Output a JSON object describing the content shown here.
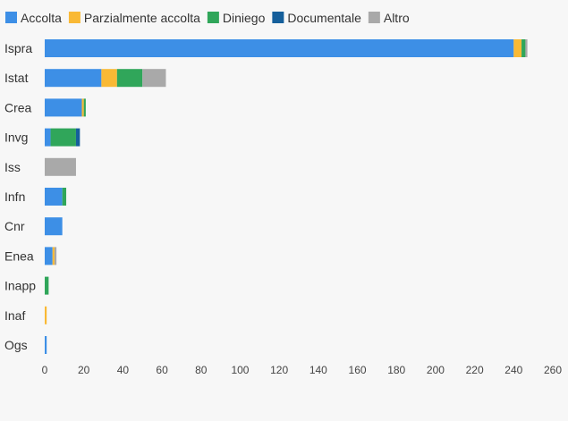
{
  "chart_data": {
    "type": "bar",
    "orientation": "horizontal",
    "stacked": true,
    "title": "",
    "xlabel": "",
    "ylabel": "",
    "xlim": [
      0,
      260
    ],
    "x_ticks": [
      0,
      20,
      40,
      60,
      80,
      100,
      120,
      140,
      160,
      180,
      200,
      220,
      240,
      260
    ],
    "grid": false,
    "legend_position": "top-left",
    "categories": [
      "Ispra",
      "Istat",
      "Crea",
      "Invg",
      "Iss",
      "Infn",
      "Cnr",
      "Enea",
      "Inapp",
      "Inaf",
      "Ogs"
    ],
    "series": [
      {
        "name": "Accolta",
        "color": "#3d8fe6",
        "values": [
          240,
          29,
          19,
          3,
          0,
          9,
          9,
          4,
          0,
          0,
          1
        ]
      },
      {
        "name": "Parzialmente accolta",
        "color": "#f9b935",
        "values": [
          4,
          8,
          1,
          0,
          0,
          0,
          0,
          1,
          0,
          1,
          0
        ]
      },
      {
        "name": "Diniego",
        "color": "#30a65a",
        "values": [
          2,
          13,
          1,
          13,
          0,
          2,
          0,
          0,
          2,
          0,
          0
        ]
      },
      {
        "name": "Documentale",
        "color": "#155f9b",
        "values": [
          0,
          0,
          0,
          2,
          0,
          0,
          0,
          0,
          0,
          0,
          0
        ]
      },
      {
        "name": "Altro",
        "color": "#a9a9a9",
        "values": [
          1,
          12,
          0,
          0,
          16,
          0,
          0,
          1,
          0,
          0,
          0
        ]
      }
    ]
  }
}
